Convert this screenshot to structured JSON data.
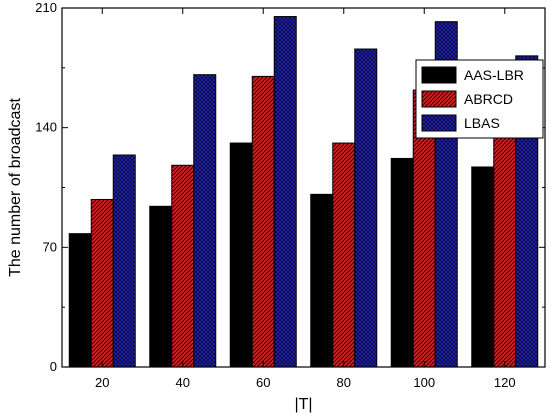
{
  "chart_data": {
    "type": "bar",
    "xlabel": "|T|",
    "ylabel": "The number of broadcast",
    "categories": [
      "20",
      "40",
      "60",
      "80",
      "100",
      "120"
    ],
    "yticks": [
      0,
      70,
      140,
      210
    ],
    "ylim": [
      0,
      210
    ],
    "legend_position": "top-right",
    "grid": false,
    "series": [
      {
        "name": "AAS-LBR",
        "color": "#000000",
        "pattern": "solid",
        "values": [
          78,
          94,
          131,
          101,
          122,
          117
        ]
      },
      {
        "name": "ABRCD",
        "color": "#d42020",
        "pattern": "diagonal-hatch",
        "values": [
          98,
          118,
          170,
          131,
          162,
          170
        ]
      },
      {
        "name": "LBAS",
        "color": "#2020b0",
        "pattern": "crosshatch",
        "values": [
          124,
          171,
          205,
          186,
          202,
          182
        ]
      }
    ]
  }
}
